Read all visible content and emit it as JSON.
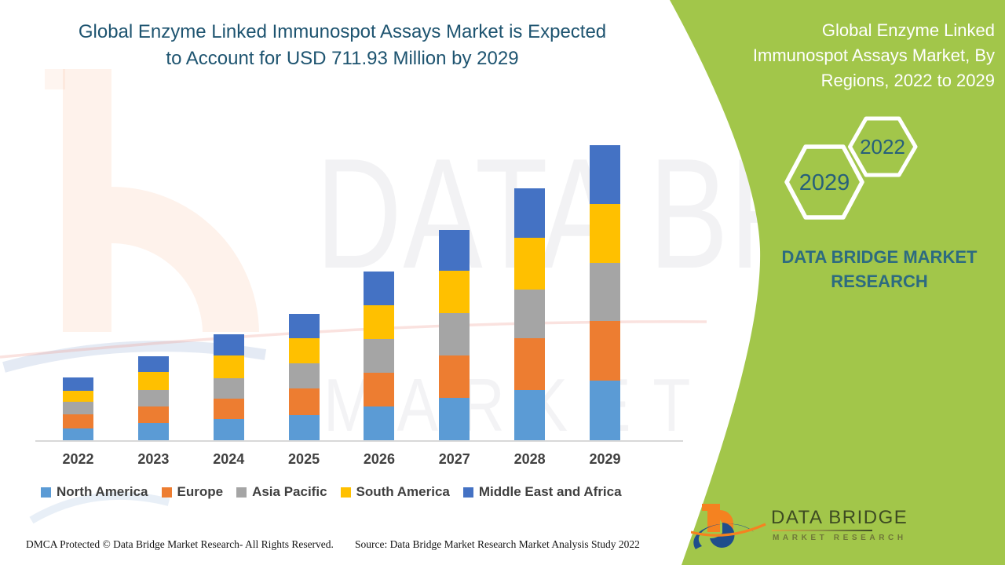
{
  "title": {
    "line1": "Global Enzyme Linked Immunospot Assays Market is Expected",
    "line2": "to Account for USD 711.93 Million by 2029"
  },
  "side_panel": {
    "heading_lines": [
      "Global Enzyme Linked",
      "Immunospot Assays Market, By",
      "Regions, 2022 to 2029"
    ],
    "hexagons": [
      {
        "label": "2029"
      },
      {
        "label": "2022"
      }
    ],
    "brand_line1": "DATA BRIDGE MARKET",
    "brand_line2": "RESEARCH",
    "accent_green": "#a2c64a"
  },
  "chart_data": {
    "type": "bar",
    "stacked": true,
    "title": "Global Enzyme Linked Immunospot Assays Market is Expected to Account for USD 711.93 Million by 2029",
    "unit": "USD Million",
    "categories": [
      "2022",
      "2023",
      "2024",
      "2025",
      "2026",
      "2027",
      "2028",
      "2029"
    ],
    "series": [
      {
        "name": "North America",
        "color": "#5B9BD5",
        "values": [
          28.4,
          41.7,
          51.2,
          60.6,
          80.9,
          102.9,
          121.8,
          143.3
        ]
      },
      {
        "name": "Europe",
        "color": "#ED7D31",
        "values": [
          34.1,
          39.8,
          49.8,
          64.4,
          82.1,
          101.0,
          125.1,
          144.0
        ]
      },
      {
        "name": "Asia Pacific",
        "color": "#A5A5A5",
        "values": [
          30.3,
          40.4,
          49.3,
          60.6,
          82.1,
          103.7,
          116.2,
          141.0
        ]
      },
      {
        "name": "South America",
        "color": "#FFC000",
        "values": [
          27.1,
          43.6,
          55.0,
          61.2,
          80.2,
          101.0,
          125.1,
          142.1
        ]
      },
      {
        "name": "Middle East and Africa",
        "color": "#4472C4",
        "values": [
          30.9,
          37.9,
          50.6,
          58.2,
          81.5,
          99.9,
          120.1,
          141.53
        ]
      }
    ],
    "totals": [
      150.8,
      203.4,
      255.9,
      305.0,
      406.8,
      508.5,
      608.3,
      711.93
    ],
    "ylim": [
      0,
      730
    ],
    "grid": false,
    "legend_position": "bottom"
  },
  "watermark": {
    "line1": "DATA BRIDGE",
    "line2": "MARKET RESEARCH"
  },
  "footer": {
    "left": "DMCA Protected © Data Bridge Market Research- All Rights Reserved.",
    "right": "Source: Data Bridge Market Research Market Analysis Study 2022"
  },
  "logo": {
    "title": "DATA BRIDGE",
    "subtitle": "MARKET RESEARCH"
  },
  "colors": {
    "title_text": "#1e5470",
    "panel_green": "#a2c64a",
    "brand_teal": "#2d6b80",
    "axis_line": "#d8d8d8",
    "label_text": "#3f3f3f"
  }
}
